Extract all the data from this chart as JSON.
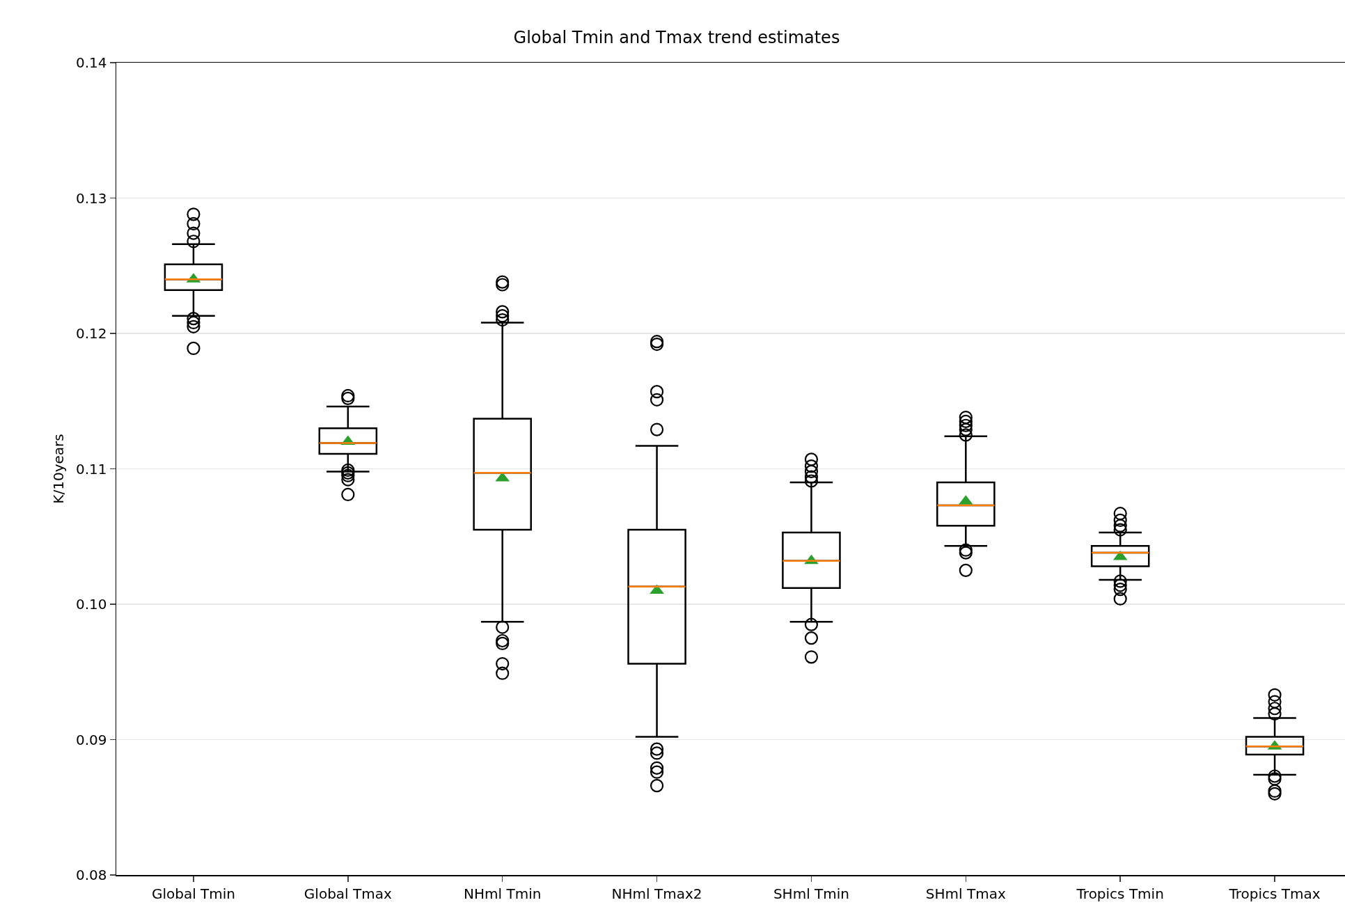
{
  "chart_data": {
    "type": "box",
    "title": "Global Tmin and Tmax trend estimates",
    "ylabel": "K/10years",
    "categories": [
      "Global Tmin",
      "Global Tmax",
      "NHml Tmin",
      "NHml Tmax2",
      "SHml Tmin",
      "SHml Tmax",
      "Tropics Tmin",
      "Tropics Tmax"
    ],
    "ylim": [
      0.08,
      0.14
    ],
    "yticks": [
      {
        "value": 0.08,
        "label": "0.08"
      },
      {
        "value": 0.09,
        "label": "0.09"
      },
      {
        "value": 0.1,
        "label": "0.10"
      },
      {
        "value": 0.11,
        "label": "0.11"
      },
      {
        "value": 0.12,
        "label": "0.12"
      },
      {
        "value": 0.13,
        "label": "0.13"
      },
      {
        "value": 0.14,
        "label": "0.14"
      }
    ],
    "grid": "y",
    "legend": false,
    "boxes": [
      {
        "low": 0.1213,
        "q1": 0.1232,
        "median": 0.124,
        "q3": 0.1251,
        "high": 0.1266,
        "mean": 0.124,
        "outliers": [
          0.1288,
          0.1281,
          0.1274,
          0.1268,
          0.1211,
          0.1208,
          0.1205,
          0.1189
        ]
      },
      {
        "low": 0.1098,
        "q1": 0.1111,
        "median": 0.1119,
        "q3": 0.113,
        "high": 0.1146,
        "mean": 0.112,
        "outliers": [
          0.1154,
          0.1152,
          0.1099,
          0.1097,
          0.1095,
          0.1092,
          0.1081
        ]
      },
      {
        "low": 0.0987,
        "q1": 0.1055,
        "median": 0.1097,
        "q3": 0.1137,
        "high": 0.1208,
        "mean": 0.1093,
        "outliers": [
          0.1238,
          0.1236,
          0.1216,
          0.1213,
          0.121,
          0.0983,
          0.0973,
          0.0971,
          0.0956,
          0.0949
        ]
      },
      {
        "low": 0.0902,
        "q1": 0.0956,
        "median": 0.1013,
        "q3": 0.1055,
        "high": 0.1117,
        "mean": 0.101,
        "outliers": [
          0.1194,
          0.1192,
          0.1157,
          0.1151,
          0.1129,
          0.0893,
          0.089,
          0.0879,
          0.0876,
          0.0866
        ]
      },
      {
        "low": 0.0987,
        "q1": 0.1012,
        "median": 0.1032,
        "q3": 0.1053,
        "high": 0.109,
        "mean": 0.1032,
        "outliers": [
          0.1107,
          0.1102,
          0.1098,
          0.1094,
          0.1091,
          0.0985,
          0.0975,
          0.0961
        ]
      },
      {
        "low": 0.1043,
        "q1": 0.1058,
        "median": 0.1073,
        "q3": 0.109,
        "high": 0.1124,
        "mean": 0.1076,
        "outliers": [
          0.1138,
          0.1135,
          0.1132,
          0.1129,
          0.1125,
          0.104,
          0.1038,
          0.1025
        ]
      },
      {
        "low": 0.1018,
        "q1": 0.1028,
        "median": 0.1038,
        "q3": 0.1043,
        "high": 0.1053,
        "mean": 0.1035,
        "outliers": [
          0.1067,
          0.1062,
          0.1058,
          0.1055,
          0.1017,
          0.1014,
          0.1011,
          0.1004
        ]
      },
      {
        "low": 0.0874,
        "q1": 0.0889,
        "median": 0.0895,
        "q3": 0.0902,
        "high": 0.0916,
        "mean": 0.0895,
        "outliers": [
          0.0933,
          0.0928,
          0.0923,
          0.0919,
          0.0873,
          0.0871,
          0.0862,
          0.086
        ]
      }
    ]
  }
}
